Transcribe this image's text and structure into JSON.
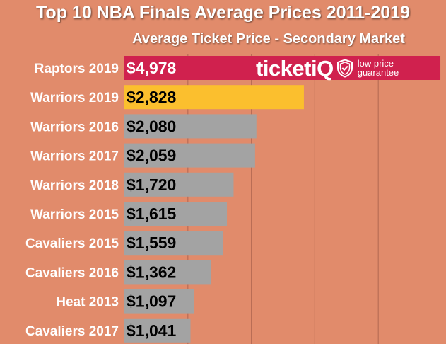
{
  "colors": {
    "background": "#e18b6b",
    "highlight": "#d0214e",
    "accent": "#fbbf2e",
    "default_bar": "#a3a3a3",
    "grid": "#b96d55"
  },
  "brand": {
    "name": "ticketiQ",
    "tagline_line1": "low price",
    "tagline_line2": "guarantee",
    "icon": "shield-check-icon"
  },
  "chart_data": {
    "type": "bar",
    "orientation": "horizontal",
    "title": "Top 10 NBA Finals Average Prices 2011-2019",
    "subtitle": "Average Ticket Price - Secondary Market",
    "categories": [
      "Raptors 2019",
      "Warriors 2019",
      "Warriors 2016",
      "Warriors 2017",
      "Warriors 2018",
      "Warriors 2015",
      "Cavaliers 2015",
      "Cavaliers 2016",
      "Heat 2013",
      "Cavaliers 2017"
    ],
    "values": [
      4978,
      2828,
      2080,
      2059,
      1720,
      1615,
      1559,
      1362,
      1097,
      1041
    ],
    "value_labels": [
      "$4,978",
      "$2,828",
      "$2,080",
      "$2,059",
      "$1,720",
      "$1,615",
      "$1,559",
      "$1,362",
      "$1,097",
      "$1,041"
    ],
    "bar_colors": [
      "#d0214e",
      "#fbbf2e",
      "#a3a3a3",
      "#a3a3a3",
      "#a3a3a3",
      "#a3a3a3",
      "#a3a3a3",
      "#a3a3a3",
      "#a3a3a3",
      "#a3a3a3"
    ],
    "value_label_colors": [
      "#ffffff",
      "#000000",
      "#000000",
      "#000000",
      "#000000",
      "#000000",
      "#000000",
      "#000000",
      "#000000",
      "#000000"
    ],
    "xlim": [
      0,
      5000
    ],
    "grid": true,
    "legend": "none"
  }
}
